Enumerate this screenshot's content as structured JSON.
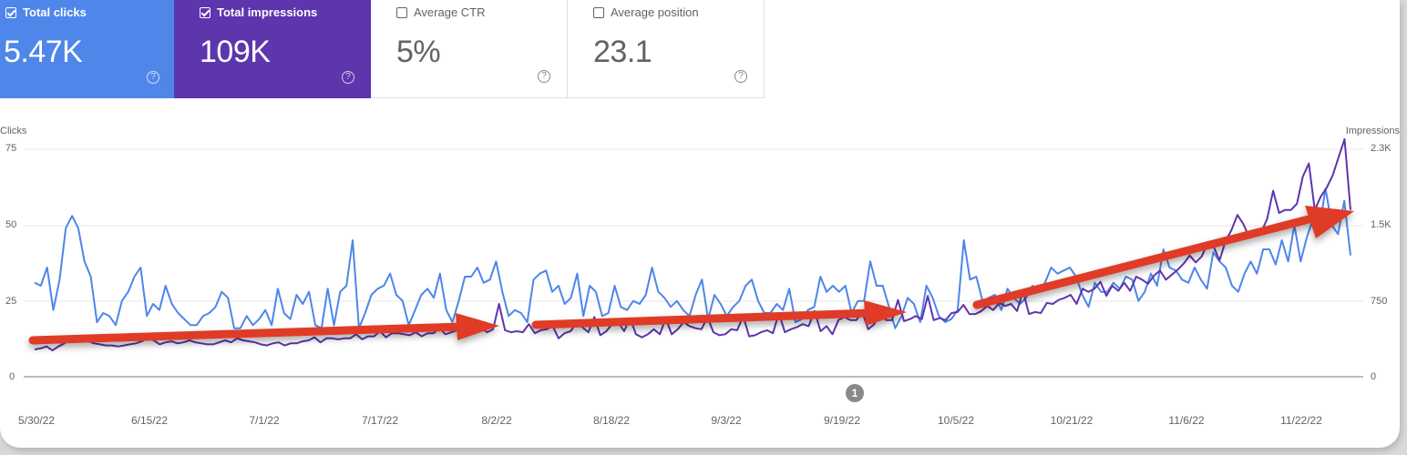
{
  "metric_cards": [
    {
      "label": "Total clicks",
      "value": "5.47K",
      "checked": true,
      "color": "#4e86ea",
      "help_icon": "help-circle-icon"
    },
    {
      "label": "Total impressions",
      "value": "109K",
      "checked": true,
      "color": "#5d36ad",
      "help_icon": "help-circle-icon"
    },
    {
      "label": "Average CTR",
      "value": "5%",
      "checked": false,
      "color": "#ffffff",
      "help_icon": "help-circle-icon"
    },
    {
      "label": "Average position",
      "value": "23.1",
      "checked": false,
      "color": "#ffffff",
      "help_icon": "help-circle-icon"
    }
  ],
  "annotation_marker": "1",
  "chart_data": {
    "type": "line",
    "title": "",
    "xlabel": "",
    "ylabel": "Clicks",
    "ylabel_right": "Impressions",
    "ylim": [
      0,
      75
    ],
    "ylim_right": [
      0,
      2250
    ],
    "y_ticks_left": [
      "0",
      "25",
      "50",
      "75"
    ],
    "y_ticks_right": [
      "0",
      "750",
      "1.5K",
      "2.3K"
    ],
    "grid": true,
    "legend": "metric cards (top)",
    "x_tick_labels": [
      "5/30/22",
      "6/15/22",
      "7/1/22",
      "7/17/22",
      "8/2/22",
      "8/18/22",
      "9/3/22",
      "9/19/22",
      "10/5/22",
      "10/21/22",
      "11/6/22",
      "11/22/22"
    ],
    "series": [
      {
        "name": "Clicks",
        "axis": "left",
        "color": "#4e86ea",
        "values": [
          31,
          30,
          36,
          22,
          32,
          49,
          53,
          49,
          38,
          33,
          18,
          21,
          20,
          17,
          25,
          28,
          33,
          36,
          20,
          24,
          22,
          30,
          24,
          21,
          19,
          17,
          17,
          20,
          21,
          23,
          28,
          26,
          16,
          16,
          20,
          17,
          19,
          22,
          17,
          29,
          21,
          19,
          27,
          24,
          28,
          17,
          16,
          29,
          17,
          28,
          30,
          45,
          16,
          21,
          27,
          29,
          30,
          34,
          27,
          25,
          17,
          22,
          27,
          29,
          26,
          34,
          22,
          18,
          25,
          33,
          33,
          36,
          31,
          32,
          38,
          28,
          20,
          22,
          21,
          18,
          32,
          34,
          35,
          28,
          30,
          24,
          26,
          34,
          20,
          30,
          28,
          20,
          21,
          30,
          23,
          22,
          25,
          24,
          27,
          36,
          28,
          26,
          23,
          25,
          22,
          20,
          27,
          32,
          19,
          27,
          24,
          20,
          23,
          25,
          30,
          32,
          25,
          21,
          21,
          24,
          22,
          29,
          18,
          19,
          22,
          23,
          33,
          28,
          30,
          28,
          30,
          21,
          25,
          25,
          38,
          30,
          30,
          23,
          16,
          20,
          26,
          24,
          18,
          30,
          26,
          20,
          18,
          19,
          22,
          45,
          32,
          33,
          25,
          26,
          27,
          22,
          29,
          26,
          24,
          26,
          30,
          28,
          31,
          36,
          34,
          35,
          36,
          33,
          27,
          23,
          31,
          28,
          28,
          31,
          29,
          33,
          32,
          25,
          28,
          34,
          30,
          42,
          36,
          35,
          32,
          31,
          36,
          32,
          29,
          41,
          38,
          36,
          30,
          28,
          34,
          38,
          34,
          42,
          42,
          37,
          45,
          38,
          50,
          38,
          46,
          52,
          49,
          62,
          50,
          47,
          58,
          40
        ],
        "smoothed_sample_note": "daily values estimated from pixels"
      },
      {
        "name": "Impressions",
        "axis": "right",
        "color": "#5d36ad",
        "values": [
          270,
          280,
          300,
          260,
          300,
          330,
          370,
          390,
          370,
          350,
          330,
          320,
          310,
          310,
          300,
          310,
          320,
          330,
          350,
          380,
          360,
          320,
          340,
          350,
          330,
          340,
          360,
          340,
          330,
          320,
          320,
          340,
          360,
          340,
          380,
          360,
          350,
          340,
          320,
          310,
          330,
          340,
          310,
          330,
          330,
          350,
          360,
          390,
          340,
          380,
          380,
          370,
          380,
          380,
          420,
          370,
          400,
          400,
          450,
          390,
          430,
          430,
          420,
          410,
          440,
          400,
          430,
          430,
          480,
          420,
          440,
          460,
          480,
          430,
          520,
          480,
          440,
          470,
          720,
          460,
          440,
          450,
          440,
          520,
          430,
          460,
          470,
          500,
          380,
          430,
          450,
          530,
          490,
          440,
          590,
          410,
          450,
          520,
          540,
          450,
          580,
          420,
          390,
          420,
          470,
          420,
          580,
          420,
          470,
          540,
          500,
          480,
          470,
          590,
          440,
          410,
          420,
          470,
          460,
          600,
          400,
          410,
          440,
          460,
          430,
          630,
          440,
          470,
          490,
          520,
          500,
          650,
          450,
          500,
          420,
          560,
          590,
          560,
          560,
          640,
          470,
          520,
          630,
          560,
          560,
          760,
          550,
          570,
          600,
          570,
          800,
          560,
          580,
          560,
          630,
          640,
          710,
          620,
          620,
          650,
          700,
          660,
          730,
          700,
          720,
          650,
          850,
          620,
          640,
          630,
          730,
          720,
          760,
          780,
          810,
          720,
          870,
          840,
          870,
          940,
          800,
          900,
          850,
          930,
          850,
          990,
          960,
          920,
          1000,
          1050,
          960,
          1010,
          1060,
          1120,
          1200,
          1130,
          1190,
          1320,
          1290,
          1150,
          1340,
          1450,
          1600,
          1510,
          1380,
          1450,
          1430,
          1560,
          1840,
          1620,
          1650,
          1650,
          1710,
          1980,
          2110,
          1650,
          1780,
          1870,
          1990,
          2170,
          2350,
          1650
        ]
      }
    ],
    "overlays": [
      {
        "type": "arrow",
        "color": "#e03a27",
        "from_date": "5/30/22",
        "to_date": "8/2/22",
        "note": "trend arrow 1"
      },
      {
        "type": "arrow",
        "color": "#e03a27",
        "from_date": "8/6/22",
        "to_date": "9/30/22",
        "note": "trend arrow 2"
      },
      {
        "type": "arrow",
        "color": "#e03a27",
        "from_date": "10/9/22",
        "to_date": "11/29/22",
        "note": "trend arrow 3"
      }
    ]
  }
}
